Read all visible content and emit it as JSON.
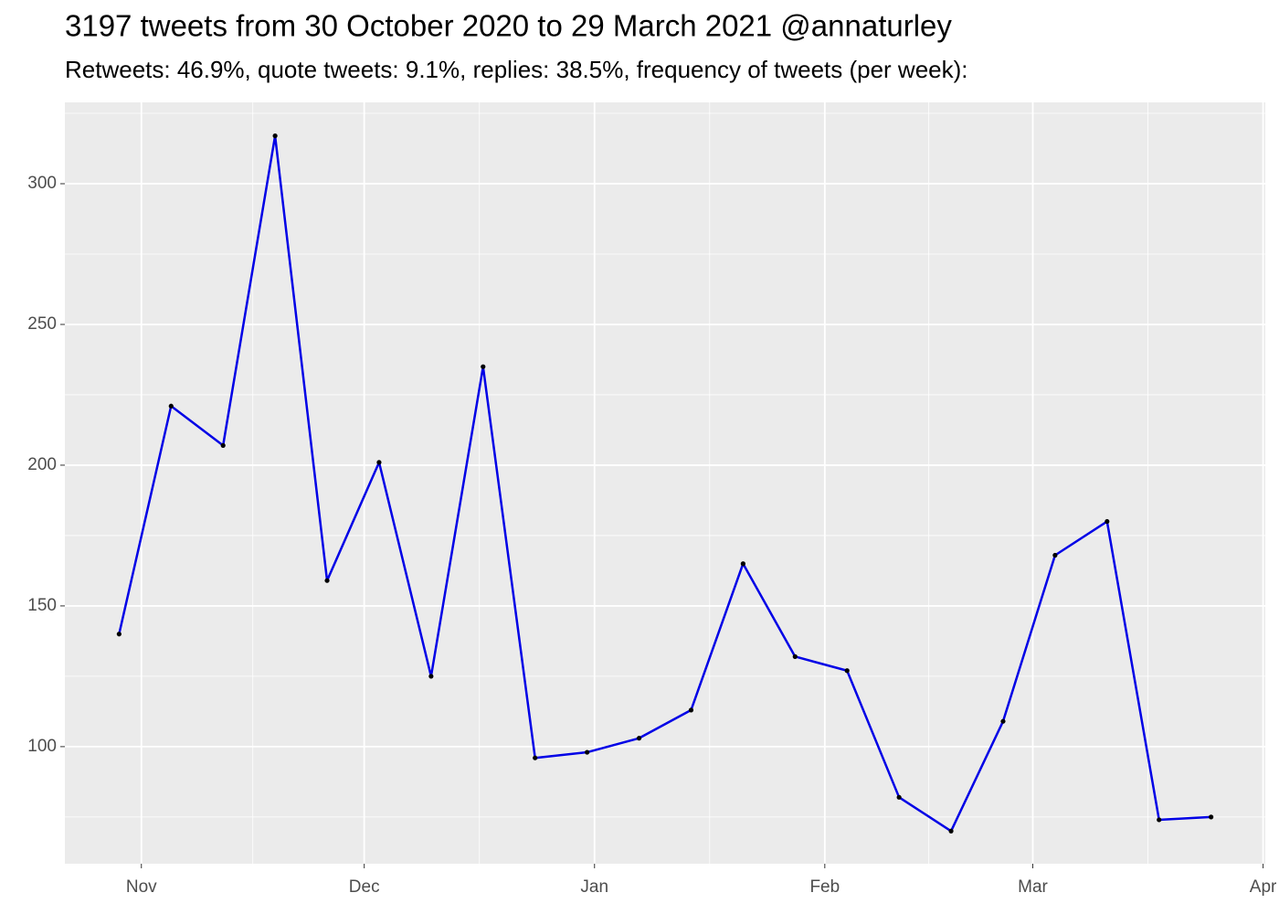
{
  "chart_data": {
    "type": "line",
    "title": "3197 tweets from 30 October 2020 to 29 March 2021 @annaturley",
    "subtitle": "Retweets: 46.9%, quote tweets: 9.1%, replies: 38.5%, frequency of tweets (per week):",
    "x": [
      -3,
      4,
      11,
      18,
      25,
      32,
      39,
      46,
      53,
      60,
      67,
      74,
      81,
      88,
      95,
      102,
      109,
      116,
      123,
      130,
      137,
      144
    ],
    "values": [
      140,
      221,
      207,
      317,
      159,
      201,
      125,
      235,
      96,
      98,
      103,
      113,
      165,
      132,
      127,
      82,
      70,
      109,
      168,
      180,
      74,
      75
    ],
    "color": "#0000e6",
    "point_color": "#000000",
    "xlim": [
      -10.3,
      151.3
    ],
    "xticks": [
      {
        "value": 0,
        "label": "Nov"
      },
      {
        "value": 30,
        "label": "Dec"
      },
      {
        "value": 61,
        "label": "Jan"
      },
      {
        "value": 92,
        "label": "Feb"
      },
      {
        "value": 120,
        "label": "Mar"
      },
      {
        "value": 151,
        "label": "Apr"
      }
    ],
    "ylim": [
      58.4,
      328.9
    ],
    "yticks": [
      100,
      150,
      200,
      250,
      300
    ],
    "grid": true
  }
}
